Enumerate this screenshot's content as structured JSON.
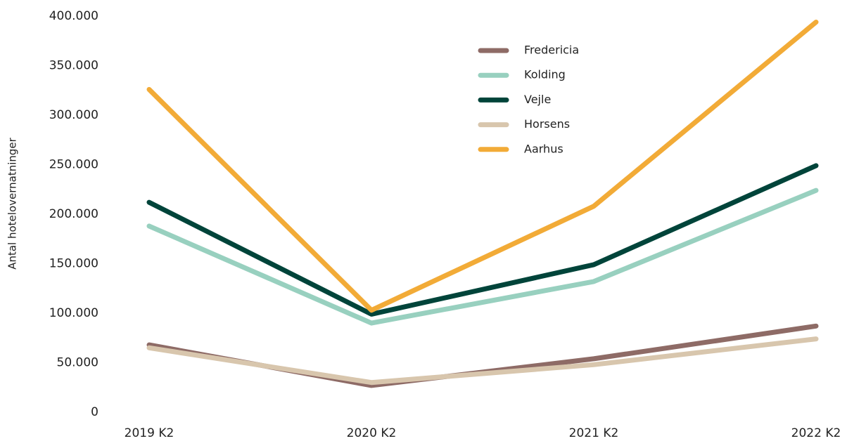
{
  "chart_data": {
    "type": "line",
    "y_label": "Antal hotelovernatninger",
    "categories": [
      "2019 K2",
      "2020 K2",
      "2021 K2",
      "2022 K2"
    ],
    "series": [
      {
        "name": "Fredericia",
        "color": "#8e6b66",
        "values": [
          68000,
          27000,
          54000,
          87000
        ]
      },
      {
        "name": "Kolding",
        "color": "#98d0bf",
        "values": [
          188000,
          90000,
          132000,
          224000
        ]
      },
      {
        "name": "Vejle",
        "color": "#00443a",
        "values": [
          212000,
          99000,
          149000,
          249000
        ]
      },
      {
        "name": "Horsens",
        "color": "#d8c6ad",
        "values": [
          65000,
          30000,
          48000,
          74000
        ]
      },
      {
        "name": "Aarhus",
        "color": "#f2ab37",
        "values": [
          326000,
          103000,
          208000,
          394000
        ]
      }
    ],
    "ylim": [
      0,
      400000
    ],
    "yticks": [
      0,
      {
        "value": 50000,
        "label": "50.000"
      },
      {
        "value": 100000,
        "label": "100.000"
      },
      {
        "value": 150000,
        "label": "150.000"
      },
      {
        "value": 200000,
        "label": "200.000"
      },
      {
        "value": 250000,
        "label": "250.000"
      },
      {
        "value": 300000,
        "label": "300.000"
      },
      {
        "value": 350000,
        "label": "350.000"
      },
      {
        "value": 400000,
        "label": "400.000"
      }
    ],
    "grid": false,
    "legend": "top-center"
  }
}
